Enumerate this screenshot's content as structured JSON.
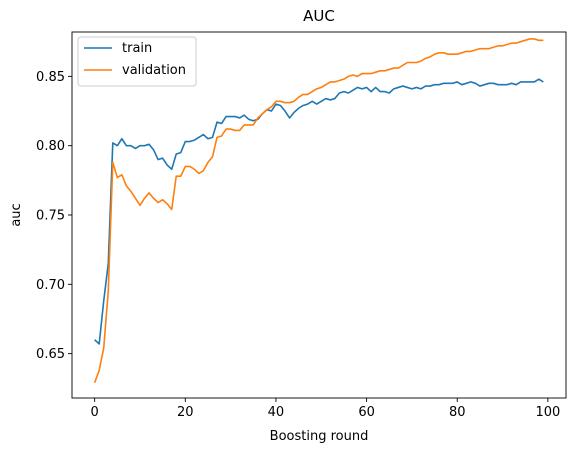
{
  "chart_data": {
    "type": "line",
    "title": "AUC",
    "xlabel": "Boosting round",
    "ylabel": "auc",
    "xlim": [
      -5,
      104
    ],
    "ylim": [
      0.618,
      0.882
    ],
    "xticks": [
      0,
      20,
      40,
      60,
      80,
      100
    ],
    "yticks": [
      0.65,
      0.7,
      0.75,
      0.8,
      0.85
    ],
    "ytick_labels": [
      "0.65",
      "0.70",
      "0.75",
      "0.80",
      "0.85"
    ],
    "xtick_labels": [
      "0",
      "20",
      "40",
      "60",
      "80",
      "100"
    ],
    "grid": false,
    "legend_position": "upper-left",
    "series": [
      {
        "name": "train",
        "color": "#1f77b4",
        "x": [
          0,
          1,
          2,
          3,
          4,
          5,
          6,
          7,
          8,
          9,
          10,
          11,
          12,
          13,
          14,
          15,
          16,
          17,
          18,
          19,
          20,
          21,
          22,
          23,
          24,
          25,
          26,
          27,
          28,
          29,
          30,
          31,
          32,
          33,
          34,
          35,
          36,
          37,
          38,
          39,
          40,
          41,
          42,
          43,
          44,
          45,
          46,
          47,
          48,
          49,
          50,
          51,
          52,
          53,
          54,
          55,
          56,
          57,
          58,
          59,
          60,
          61,
          62,
          63,
          64,
          65,
          66,
          67,
          68,
          69,
          70,
          71,
          72,
          73,
          74,
          75,
          76,
          77,
          78,
          79,
          80,
          81,
          82,
          83,
          84,
          85,
          86,
          87,
          88,
          89,
          90,
          91,
          92,
          93,
          94,
          95,
          96,
          97,
          98,
          99
        ],
        "values": [
          0.66,
          0.657,
          0.688,
          0.715,
          0.802,
          0.8,
          0.805,
          0.8,
          0.8,
          0.798,
          0.8,
          0.8,
          0.801,
          0.797,
          0.79,
          0.791,
          0.786,
          0.783,
          0.794,
          0.795,
          0.803,
          0.803,
          0.804,
          0.806,
          0.808,
          0.805,
          0.806,
          0.817,
          0.816,
          0.821,
          0.821,
          0.821,
          0.82,
          0.822,
          0.819,
          0.818,
          0.819,
          0.823,
          0.826,
          0.825,
          0.83,
          0.829,
          0.825,
          0.82,
          0.824,
          0.827,
          0.829,
          0.83,
          0.832,
          0.83,
          0.832,
          0.834,
          0.833,
          0.834,
          0.838,
          0.839,
          0.838,
          0.84,
          0.842,
          0.841,
          0.842,
          0.839,
          0.842,
          0.839,
          0.839,
          0.838,
          0.841,
          0.842,
          0.843,
          0.842,
          0.841,
          0.842,
          0.841,
          0.843,
          0.843,
          0.844,
          0.844,
          0.845,
          0.845,
          0.845,
          0.846,
          0.844,
          0.845,
          0.846,
          0.845,
          0.843,
          0.844,
          0.845,
          0.845,
          0.844,
          0.844,
          0.844,
          0.845,
          0.844,
          0.846,
          0.846,
          0.846,
          0.846,
          0.848,
          0.846
        ]
      },
      {
        "name": "validation",
        "color": "#ff7f0e",
        "x": [
          0,
          1,
          2,
          3,
          4,
          5,
          6,
          7,
          8,
          9,
          10,
          11,
          12,
          13,
          14,
          15,
          16,
          17,
          18,
          19,
          20,
          21,
          22,
          23,
          24,
          25,
          26,
          27,
          28,
          29,
          30,
          31,
          32,
          33,
          34,
          35,
          36,
          37,
          38,
          39,
          40,
          41,
          42,
          43,
          44,
          45,
          46,
          47,
          48,
          49,
          50,
          51,
          52,
          53,
          54,
          55,
          56,
          57,
          58,
          59,
          60,
          61,
          62,
          63,
          64,
          65,
          66,
          67,
          68,
          69,
          70,
          71,
          72,
          73,
          74,
          75,
          76,
          77,
          78,
          79,
          80,
          81,
          82,
          83,
          84,
          85,
          86,
          87,
          88,
          89,
          90,
          91,
          92,
          93,
          94,
          95,
          96,
          97,
          98,
          99
        ],
        "values": [
          0.629,
          0.638,
          0.654,
          0.695,
          0.788,
          0.777,
          0.779,
          0.771,
          0.767,
          0.762,
          0.757,
          0.762,
          0.766,
          0.762,
          0.759,
          0.761,
          0.758,
          0.754,
          0.778,
          0.778,
          0.785,
          0.785,
          0.783,
          0.78,
          0.782,
          0.788,
          0.792,
          0.806,
          0.807,
          0.812,
          0.812,
          0.811,
          0.811,
          0.815,
          0.815,
          0.815,
          0.82,
          0.823,
          0.826,
          0.828,
          0.832,
          0.832,
          0.831,
          0.831,
          0.832,
          0.835,
          0.837,
          0.837,
          0.839,
          0.841,
          0.842,
          0.844,
          0.846,
          0.846,
          0.847,
          0.848,
          0.85,
          0.851,
          0.85,
          0.852,
          0.852,
          0.852,
          0.853,
          0.854,
          0.854,
          0.855,
          0.856,
          0.856,
          0.858,
          0.86,
          0.86,
          0.86,
          0.861,
          0.863,
          0.864,
          0.866,
          0.867,
          0.867,
          0.866,
          0.866,
          0.866,
          0.867,
          0.868,
          0.868,
          0.869,
          0.87,
          0.87,
          0.87,
          0.871,
          0.872,
          0.872,
          0.873,
          0.874,
          0.874,
          0.875,
          0.876,
          0.877,
          0.877,
          0.876,
          0.876
        ]
      }
    ]
  }
}
